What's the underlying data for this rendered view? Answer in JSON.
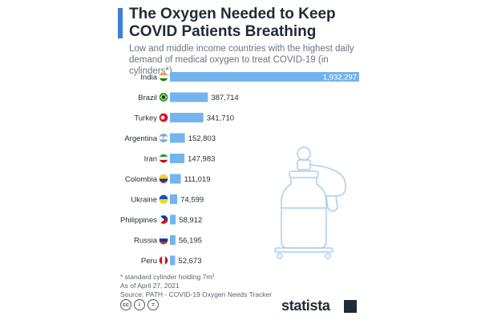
{
  "header": {
    "title": "The Oxygen Needed to Keep COVID Patients Breathing",
    "subtitle": "Low and middle income countries with the highest daily demand of medical oxygen to treat COVID-19 (in cylinders*)"
  },
  "chart_data": {
    "type": "bar",
    "orientation": "horizontal",
    "categories": [
      "India",
      "Brazil",
      "Turkey",
      "Argentina",
      "Iran",
      "Colombia",
      "Ukraine",
      "Philippines",
      "Russia",
      "Peru"
    ],
    "values": [
      1932297,
      387714,
      341710,
      152803,
      147983,
      111019,
      74599,
      58912,
      56195,
      52673
    ],
    "value_labels": [
      "1,932,297",
      "387,714",
      "341,710",
      "152,803",
      "147,983",
      "111,019",
      "74,599",
      "58,912",
      "56,195",
      "52,673"
    ],
    "flags": [
      "flag-india-icon",
      "flag-brazil-icon",
      "flag-turkey-icon",
      "flag-argentina-icon",
      "flag-iran-icon",
      "flag-colombia-icon",
      "flag-ukraine-icon",
      "flag-philippines-icon",
      "flag-russia-icon",
      "flag-peru-icon"
    ],
    "bar_color": "#74b4ee",
    "grid": false,
    "legend": "none"
  },
  "footer": {
    "note": "* standard cylinder holding 7m³",
    "date": "As of April 27, 2021",
    "source": "Source: PATH - COVID-19 Oxygen Needs Tracker",
    "brand": "statista"
  },
  "icons": [
    "oxygen-cylinder-icon",
    "creative-commons-icon",
    "attribution-icon",
    "no-derivatives-icon"
  ]
}
